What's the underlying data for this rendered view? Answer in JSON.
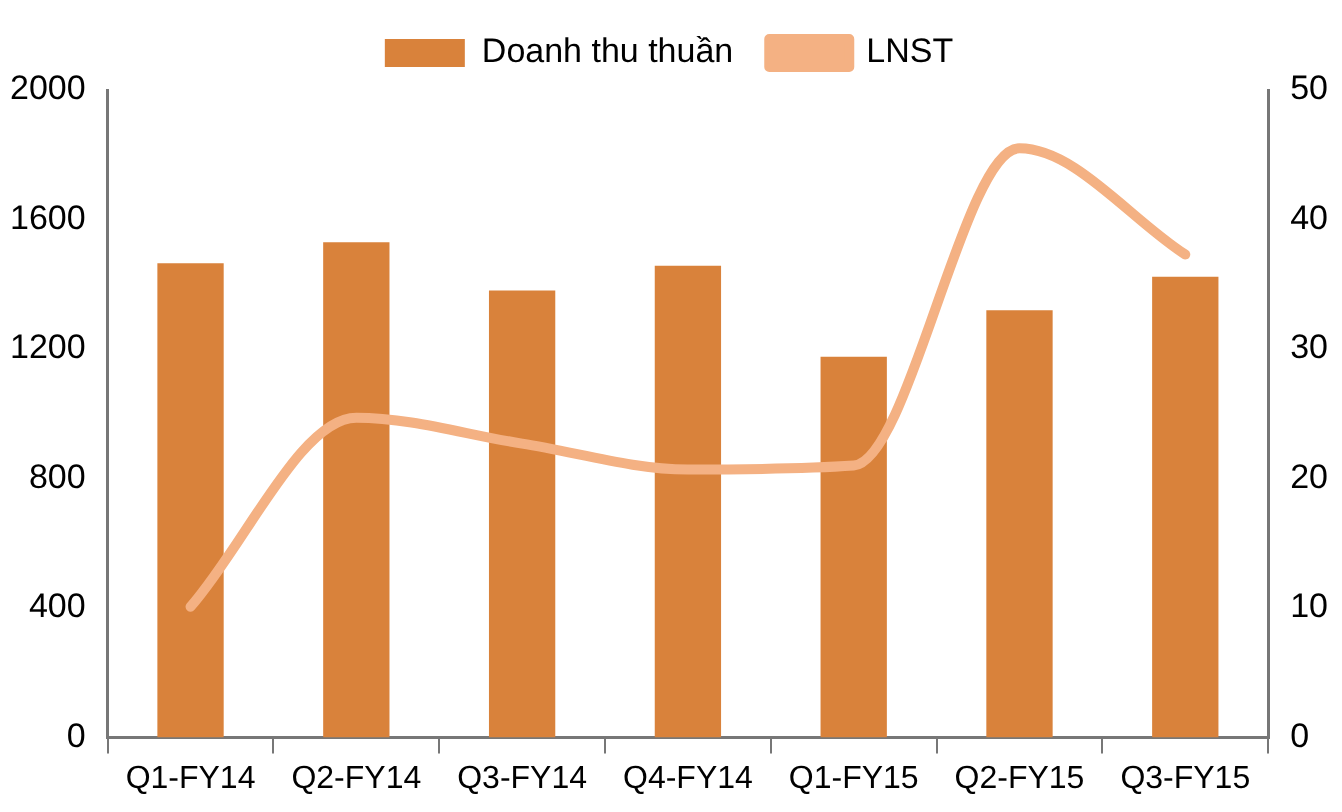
{
  "chart_data": {
    "type": "bar",
    "categories": [
      "Q1-FY14",
      "Q2-FY14",
      "Q3-FY14",
      "Q4-FY14",
      "Q1-FY15",
      "Q2-FY15",
      "Q3-FY15"
    ],
    "series": [
      {
        "name": "Doanh thu thuần",
        "color": "#d9823b",
        "values": [
          1465,
          1530,
          1381,
          1457,
          1176,
          1320,
          1423
        ]
      },
      {
        "name": "LNST",
        "type": "line",
        "axis": "y2",
        "color": "#f4b183",
        "values": [
          10.1,
          24.7,
          22.7,
          20.7,
          21,
          45.5,
          37.3
        ]
      }
    ],
    "ylim": [
      0,
      2000
    ],
    "yticks": [
      0,
      400,
      800,
      1200,
      1600,
      2000
    ],
    "y2lim": [
      0,
      50
    ],
    "y2ticks": [
      0,
      10,
      20,
      30,
      40,
      50
    ],
    "grid": false,
    "legend": "top",
    "marker": "none"
  }
}
